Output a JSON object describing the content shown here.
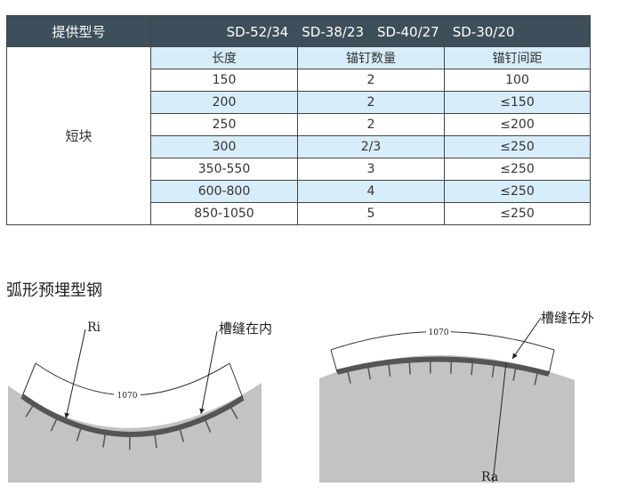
{
  "table": {
    "header_label": "提供型号",
    "models": "SD-52/34　SD-38/23　SD-40/27　SD-30/20",
    "category": "短块",
    "columns": [
      "长度",
      "锚钉数量",
      "锚钉间距"
    ],
    "rows": [
      [
        "150",
        "2",
        "100"
      ],
      [
        "200",
        "2",
        "≤150"
      ],
      [
        "250",
        "2",
        "≤200"
      ],
      [
        "300",
        "2/3",
        "≤250"
      ],
      [
        "350-550",
        "3",
        "≤250"
      ],
      [
        "600-800",
        "4",
        "≤250"
      ],
      [
        "850-1050",
        "5",
        "≤250"
      ]
    ]
  },
  "section_title": "弧形预埋型钢",
  "figures": {
    "left": {
      "radius_label": "Ri",
      "slot_label": "槽缝在内",
      "dimension": "1070"
    },
    "right": {
      "radius_label": "Ra",
      "slot_label": "槽缝在外",
      "dimension": "1070"
    }
  }
}
